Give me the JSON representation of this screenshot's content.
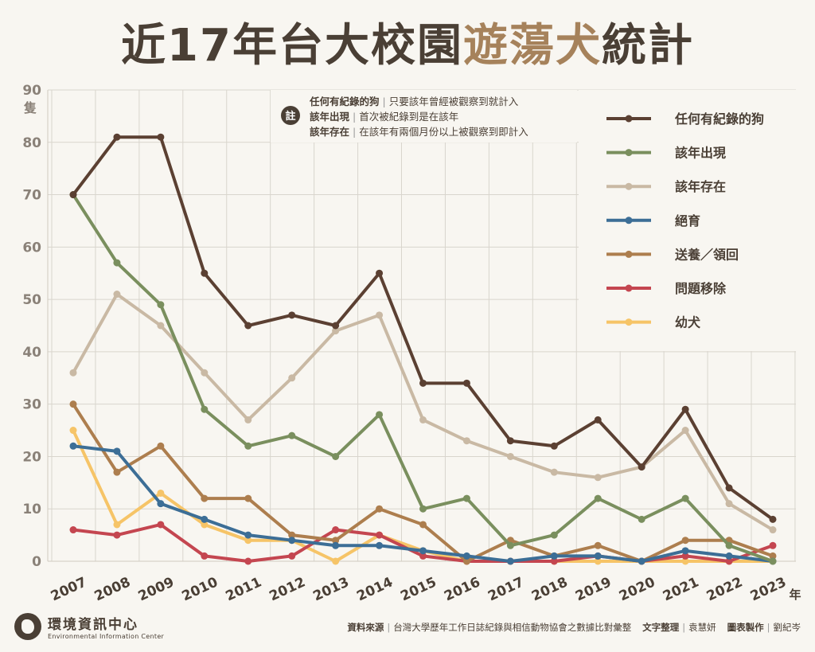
{
  "title": {
    "part1": "近17年台大校園",
    "part2": "遊蕩犬",
    "part3": "統計"
  },
  "note": {
    "badge": "註",
    "lines": [
      {
        "term": "任何有紀錄的狗",
        "desc": "只要該年曾經被觀察到就計入"
      },
      {
        "term": "該年出現",
        "desc": "首次被紀錄到是在該年"
      },
      {
        "term": "該年存在",
        "desc": "在該年有兩個月份以上被觀察到即計入"
      }
    ]
  },
  "footer": {
    "org_zh": "環境資訊中心",
    "org_en": "Environmental Information Center",
    "source_label": "資料來源",
    "source_text": "台灣大學歷年工作日誌紀錄與相信動物協會之數據比對彙整",
    "writer_label": "文字整理",
    "writer": "袁慧妍",
    "chart_label": "圖表製作",
    "chart_maker": "劉紀岑"
  },
  "chart_data": {
    "type": "line",
    "x": [
      "2007",
      "2008",
      "2009",
      "2010",
      "2011",
      "2012",
      "2013",
      "2014",
      "2015",
      "2016",
      "2017",
      "2018",
      "2019",
      "2020",
      "2021",
      "2022",
      "2023"
    ],
    "xlabel": "年",
    "ylabel": "隻",
    "ylim": [
      0,
      90
    ],
    "yticks": [
      0,
      10,
      20,
      30,
      40,
      50,
      60,
      70,
      80,
      90
    ],
    "grid": true,
    "legend_position": "right",
    "series": [
      {
        "name": "任何有紀錄的狗",
        "color": "#5b4032",
        "values": [
          70,
          81,
          81,
          55,
          45,
          47,
          45,
          55,
          34,
          34,
          23,
          22,
          27,
          18,
          29,
          14,
          8
        ]
      },
      {
        "name": "該年出現",
        "color": "#7a8f5e",
        "values": [
          70,
          57,
          49,
          29,
          22,
          24,
          20,
          28,
          10,
          12,
          3,
          5,
          12,
          8,
          12,
          3,
          0
        ]
      },
      {
        "name": "該年存在",
        "color": "#c9b9a4",
        "values": [
          36,
          51,
          45,
          36,
          27,
          35,
          44,
          47,
          27,
          23,
          20,
          17,
          16,
          18,
          25,
          11,
          6
        ]
      },
      {
        "name": "絕育",
        "color": "#3c6e96",
        "values": [
          22,
          21,
          11,
          8,
          5,
          4,
          3,
          3,
          2,
          1,
          0,
          1,
          1,
          0,
          2,
          1,
          0
        ]
      },
      {
        "name": "送養／領回",
        "color": "#ad7e4e",
        "values": [
          30,
          17,
          22,
          12,
          12,
          5,
          4,
          10,
          7,
          0,
          4,
          1,
          3,
          0,
          4,
          4,
          1
        ]
      },
      {
        "name": "問題移除",
        "color": "#c44650",
        "values": [
          6,
          5,
          7,
          1,
          0,
          1,
          6,
          5,
          1,
          0,
          0,
          0,
          1,
          0,
          1,
          0,
          3
        ]
      },
      {
        "name": "幼犬",
        "color": "#f6c467",
        "values": [
          25,
          7,
          13,
          7,
          4,
          4,
          0,
          5,
          2,
          0,
          0,
          0,
          0,
          0,
          0,
          0,
          0
        ]
      }
    ]
  }
}
